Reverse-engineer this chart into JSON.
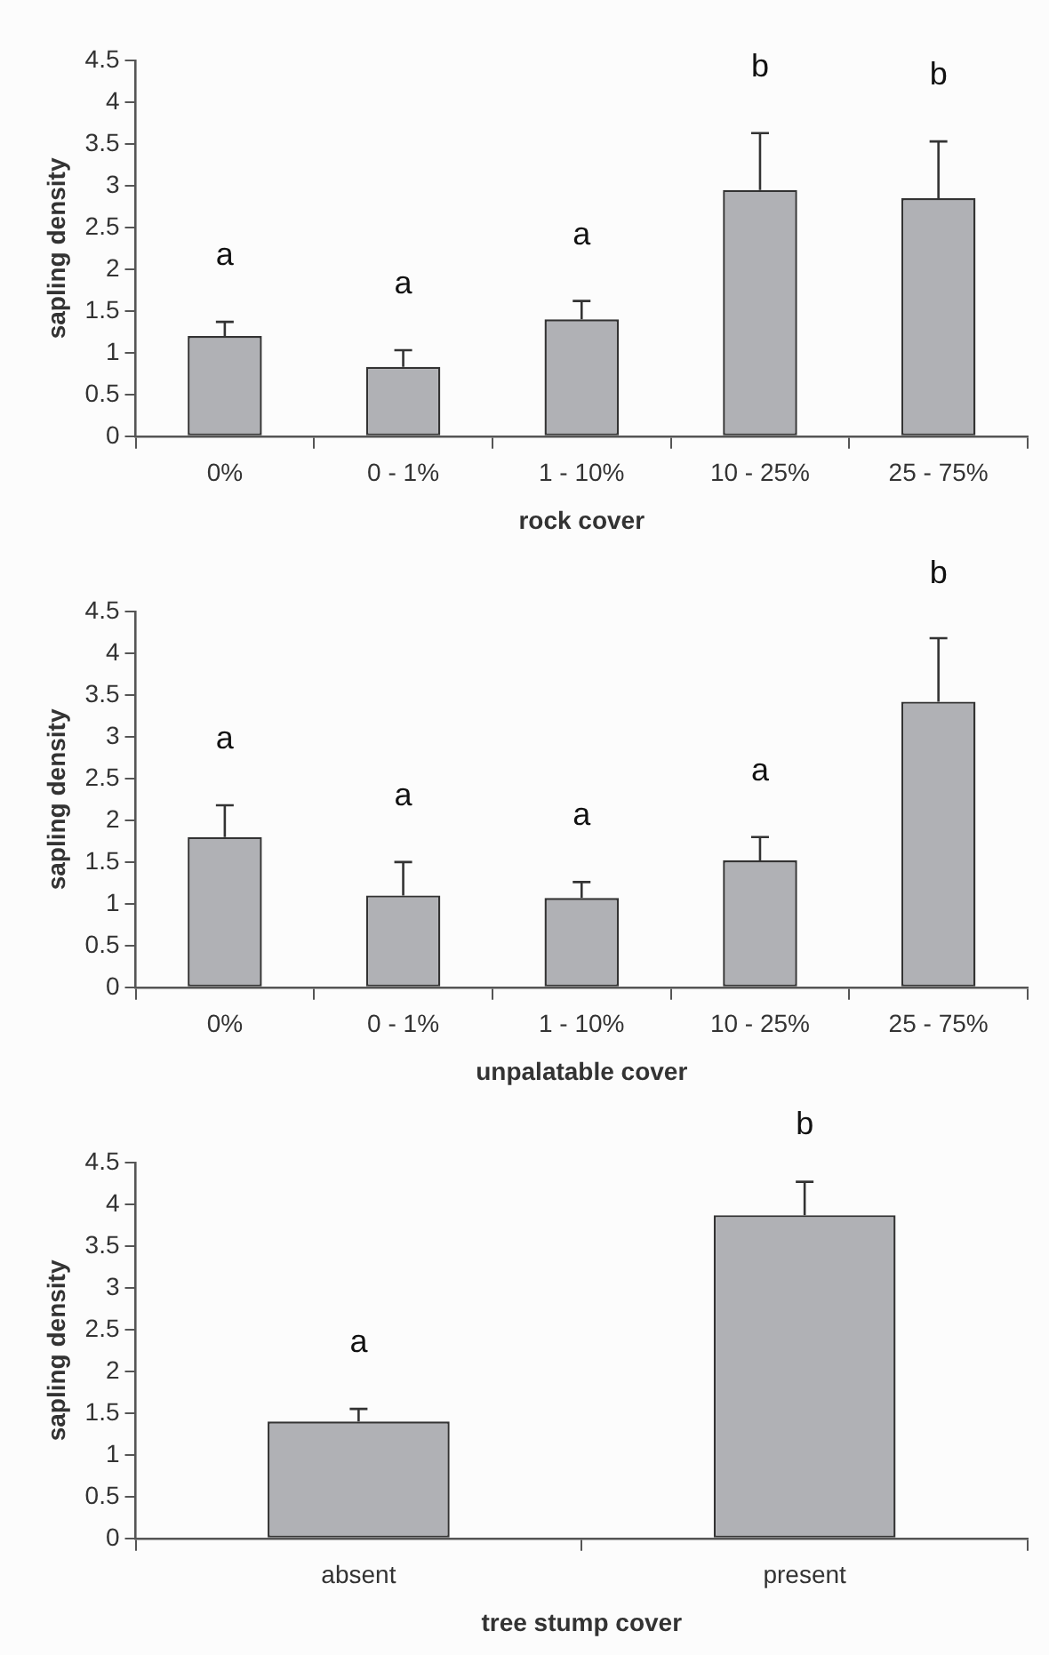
{
  "chart_data": [
    {
      "type": "bar",
      "xlabel": "rock cover",
      "ylabel": "sapling density",
      "categories": [
        "0%",
        "0 - 1%",
        "1 - 10%",
        "10 - 25%",
        "25 - 75%"
      ],
      "values": [
        1.2,
        0.83,
        1.4,
        2.95,
        2.85
      ],
      "errors": [
        [
          1.2,
          1.37
        ],
        [
          0.83,
          1.03
        ],
        [
          1.4,
          1.62
        ],
        [
          2.95,
          3.63
        ],
        [
          2.85,
          3.53
        ]
      ],
      "color": "#b0b1b5",
      "ylim": [
        0,
        4.5
      ],
      "yticks": [
        0,
        0.5,
        1,
        1.5,
        2,
        2.5,
        3,
        3.5,
        4,
        4.5
      ],
      "grid": false,
      "legend": false,
      "annotations": [
        "a",
        "a",
        "a",
        "b",
        "b"
      ]
    },
    {
      "type": "bar",
      "xlabel": "unpalatable cover",
      "ylabel": "sapling density",
      "categories": [
        "0%",
        "0 - 1%",
        "1 - 10%",
        "10 - 25%",
        "25 - 75%"
      ],
      "values": [
        1.8,
        1.1,
        1.07,
        1.52,
        3.42
      ],
      "errors": [
        [
          1.8,
          2.18
        ],
        [
          1.1,
          1.5
        ],
        [
          1.07,
          1.26
        ],
        [
          1.52,
          1.8
        ],
        [
          3.42,
          4.18
        ]
      ],
      "color": "#b0b1b5",
      "ylim": [
        0,
        4.5
      ],
      "yticks": [
        0,
        0.5,
        1,
        1.5,
        2,
        2.5,
        3,
        3.5,
        4,
        4.5
      ],
      "grid": false,
      "legend": false,
      "annotations": [
        "a",
        "a",
        "a",
        "a",
        "b"
      ]
    },
    {
      "type": "bar",
      "xlabel": "tree stump cover",
      "ylabel": "sapling density",
      "categories": [
        "absent",
        "present"
      ],
      "values": [
        1.4,
        3.87
      ],
      "errors": [
        [
          1.4,
          1.55
        ],
        [
          3.87,
          4.27
        ]
      ],
      "color": "#b0b1b5",
      "ylim": [
        0,
        4.5
      ],
      "yticks": [
        0,
        0.5,
        1,
        1.5,
        2,
        2.5,
        3,
        3.5,
        4,
        4.5
      ],
      "grid": false,
      "legend": false,
      "annotations": [
        "a",
        "b"
      ]
    }
  ]
}
